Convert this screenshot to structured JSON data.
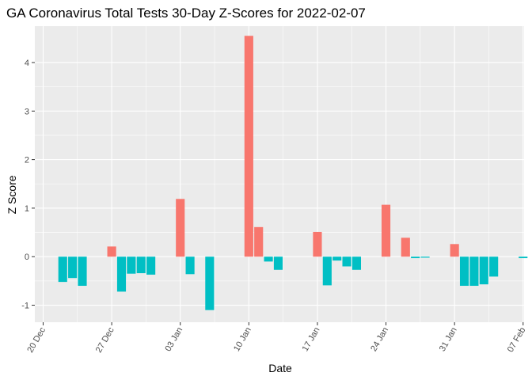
{
  "chart_data": {
    "type": "bar",
    "title": "GA Coronavirus Total Tests 30-Day Z-Scores for 2022-02-07",
    "xlabel": "Date",
    "ylabel": "Z Score",
    "ylim": [
      -1.35,
      4.75
    ],
    "y_ticks": [
      -1,
      0,
      1,
      2,
      3,
      4
    ],
    "x_start_day": -0.85,
    "x_end_day": 49.1,
    "x_ticks": [
      {
        "day": 0,
        "label": "20 Dec"
      },
      {
        "day": 7,
        "label": "27 Dec"
      },
      {
        "day": 14,
        "label": "03 Jan"
      },
      {
        "day": 21,
        "label": "10 Jan"
      },
      {
        "day": 28,
        "label": "17 Jan"
      },
      {
        "day": 35,
        "label": "24 Jan"
      },
      {
        "day": 42,
        "label": "31 Jan"
      },
      {
        "day": 49,
        "label": "07 Feb"
      }
    ],
    "fill_colors": {
      "positive": "#F8766D",
      "negative": "#00BFC4"
    },
    "days": [
      2,
      3,
      4,
      7,
      8,
      9,
      10,
      11,
      14,
      15,
      17,
      21,
      22,
      23,
      24,
      28,
      29,
      30,
      31,
      32,
      35,
      37,
      38,
      39,
      42,
      43,
      44,
      45,
      46,
      49
    ],
    "values": [
      -0.52,
      -0.44,
      -0.6,
      0.21,
      -0.72,
      -0.35,
      -0.34,
      -0.37,
      1.19,
      -0.36,
      -1.1,
      4.55,
      0.61,
      -0.1,
      -0.27,
      0.51,
      -0.59,
      -0.08,
      -0.2,
      -0.27,
      1.07,
      0.39,
      -0.03,
      -0.02,
      0.26,
      -0.6,
      -0.6,
      -0.57,
      -0.41,
      -0.03
    ]
  }
}
